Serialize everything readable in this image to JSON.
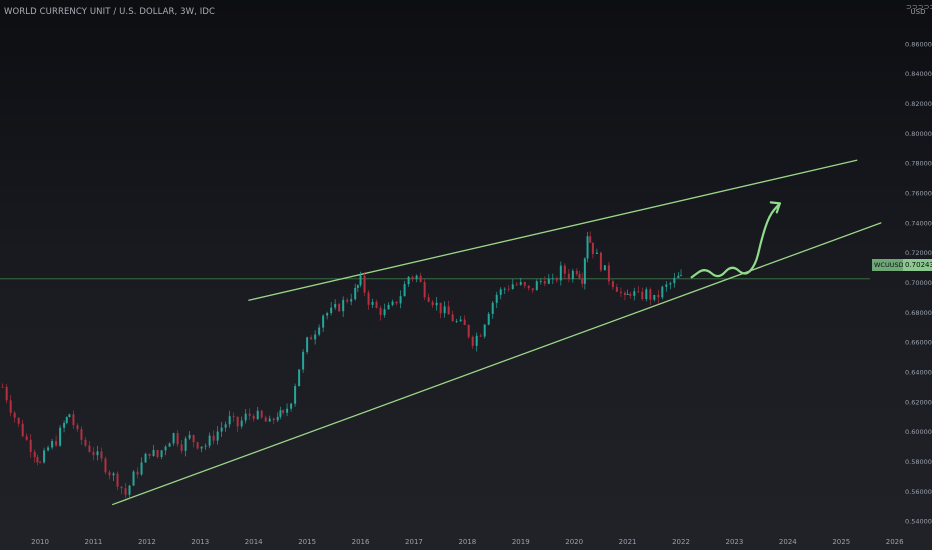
{
  "header": {
    "title": "WORLD CURRENCY UNIT / U.S. DOLLAR, 3W, IDC"
  },
  "price_scale": {
    "currency_symbol": "⊃⊃⊃⊃⊃",
    "currency_unit": "USD"
  },
  "last_price": {
    "symbol_tag": "WCUUSD",
    "price_tag": "0.70243",
    "value": 0.70243
  },
  "colors": {
    "up": "#26a69a",
    "down": "#b2303f",
    "trendline": "#9ad588",
    "price_line": "#3e7a4a",
    "axis_text": "#9aa0ab"
  },
  "chart_data": {
    "type": "candlestick",
    "title": "WORLD CURRENCY UNIT / U.S. DOLLAR, 3W, IDC",
    "x_labels": [
      "2010",
      "2011",
      "2012",
      "2013",
      "2014",
      "2015",
      "2016",
      "2017",
      "2018",
      "2019",
      "2020",
      "2021",
      "2022",
      "2023",
      "2024",
      "2025",
      "2026"
    ],
    "y_ticks": [
      "0.54000",
      "0.56000",
      "0.58000",
      "0.60000",
      "0.62000",
      "0.64000",
      "0.66000",
      "0.68000",
      "0.70000",
      "0.72000",
      "0.74000",
      "0.76000",
      "0.78000",
      "0.80000",
      "0.82000",
      "0.84000",
      "0.86000"
    ],
    "ylim": [
      0.53,
      0.888
    ],
    "xlim": [
      2009.25,
      2026.1
    ],
    "trendlines": [
      {
        "name": "upper",
        "points": [
          [
            2013.9,
            0.688
          ],
          [
            2025.3,
            0.782
          ]
        ]
      },
      {
        "name": "lower",
        "points": [
          [
            2011.35,
            0.551
          ],
          [
            2025.75,
            0.74
          ]
        ]
      }
    ],
    "projection_arrow": {
      "points": [
        [
          2022.2,
          0.7035
        ],
        [
          2022.45,
          0.71
        ],
        [
          2022.7,
          0.702
        ],
        [
          2022.95,
          0.712
        ],
        [
          2023.2,
          0.704
        ],
        [
          2023.4,
          0.712
        ],
        [
          2023.5,
          0.728
        ],
        [
          2023.65,
          0.745
        ],
        [
          2023.85,
          0.753
        ]
      ]
    },
    "series": [
      {
        "values_close": [
          [
            2009.3,
            0.63
          ],
          [
            2009.45,
            0.616
          ],
          [
            2009.6,
            0.604
          ],
          [
            2009.75,
            0.594
          ],
          [
            2009.9,
            0.586
          ],
          [
            2010.0,
            0.578
          ],
          [
            2010.15,
            0.589
          ],
          [
            2010.3,
            0.594
          ],
          [
            2010.45,
            0.605
          ],
          [
            2010.55,
            0.612
          ],
          [
            2010.7,
            0.598
          ],
          [
            2010.85,
            0.591
          ],
          [
            2011.0,
            0.586
          ],
          [
            2011.15,
            0.58
          ],
          [
            2011.3,
            0.573
          ],
          [
            2011.45,
            0.567
          ],
          [
            2011.6,
            0.558
          ],
          [
            2011.75,
            0.57
          ],
          [
            2011.9,
            0.578
          ],
          [
            2012.05,
            0.587
          ],
          [
            2012.2,
            0.583
          ],
          [
            2012.35,
            0.592
          ],
          [
            2012.5,
            0.598
          ],
          [
            2012.65,
            0.591
          ],
          [
            2012.8,
            0.596
          ],
          [
            2012.95,
            0.592
          ],
          [
            2013.1,
            0.591
          ],
          [
            2013.25,
            0.597
          ],
          [
            2013.4,
            0.603
          ],
          [
            2013.55,
            0.608
          ],
          [
            2013.7,
            0.604
          ],
          [
            2013.85,
            0.61
          ],
          [
            2014.0,
            0.612
          ],
          [
            2014.15,
            0.608
          ],
          [
            2014.3,
            0.605
          ],
          [
            2014.45,
            0.612
          ],
          [
            2014.55,
            0.61
          ],
          [
            2014.7,
            0.622
          ],
          [
            2014.85,
            0.643
          ],
          [
            2015.0,
            0.66
          ],
          [
            2015.15,
            0.668
          ],
          [
            2015.3,
            0.679
          ],
          [
            2015.45,
            0.68
          ],
          [
            2015.6,
            0.684
          ],
          [
            2015.75,
            0.689
          ],
          [
            2015.9,
            0.694
          ],
          [
            2016.0,
            0.701
          ],
          [
            2016.15,
            0.688
          ],
          [
            2016.3,
            0.682
          ],
          [
            2016.45,
            0.68
          ],
          [
            2016.6,
            0.684
          ],
          [
            2016.75,
            0.692
          ],
          [
            2016.9,
            0.704
          ],
          [
            2017.05,
            0.704
          ],
          [
            2017.2,
            0.694
          ],
          [
            2017.35,
            0.688
          ],
          [
            2017.5,
            0.682
          ],
          [
            2017.65,
            0.678
          ],
          [
            2017.8,
            0.673
          ],
          [
            2017.95,
            0.67
          ],
          [
            2018.1,
            0.661
          ],
          [
            2018.25,
            0.667
          ],
          [
            2018.4,
            0.682
          ],
          [
            2018.55,
            0.692
          ],
          [
            2018.7,
            0.696
          ],
          [
            2018.85,
            0.699
          ],
          [
            2019.0,
            0.698
          ],
          [
            2019.15,
            0.694
          ],
          [
            2019.3,
            0.699
          ],
          [
            2019.45,
            0.703
          ],
          [
            2019.6,
            0.699
          ],
          [
            2019.75,
            0.708
          ],
          [
            2019.9,
            0.705
          ],
          [
            2020.05,
            0.709
          ],
          [
            2020.15,
            0.703
          ],
          [
            2020.25,
            0.733
          ],
          [
            2020.35,
            0.722
          ],
          [
            2020.5,
            0.712
          ],
          [
            2020.65,
            0.703
          ],
          [
            2020.8,
            0.697
          ],
          [
            2020.95,
            0.688
          ],
          [
            2021.05,
            0.694
          ],
          [
            2021.2,
            0.69
          ],
          [
            2021.35,
            0.693
          ],
          [
            2021.5,
            0.688
          ],
          [
            2021.65,
            0.695
          ],
          [
            2021.8,
            0.699
          ],
          [
            2021.95,
            0.703
          ],
          [
            2022.05,
            0.702
          ]
        ]
      }
    ]
  }
}
